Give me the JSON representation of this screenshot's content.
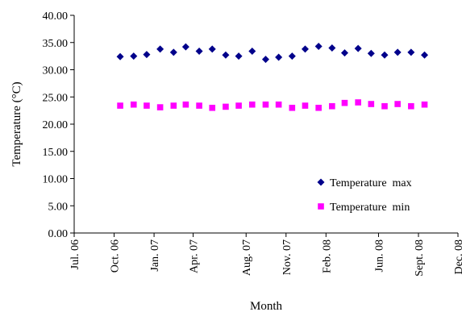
{
  "chart_data": {
    "type": "scatter",
    "xlabel": "Month",
    "ylabel": "Temperature (°C)",
    "ylim": [
      0,
      40
    ],
    "yticks": [
      "0.00",
      "5.00",
      "10.00",
      "15.00",
      "20.00",
      "25.00",
      "30.00",
      "35.00",
      "40.00"
    ],
    "xlim": [
      "2006-07-01",
      "2008-12-01"
    ],
    "xticks": [
      {
        "date": "2006-07-01",
        "label": "Jul. 06"
      },
      {
        "date": "2006-10-01",
        "label": "Oct. 06"
      },
      {
        "date": "2007-01-01",
        "label": "Jan. 07"
      },
      {
        "date": "2007-04-01",
        "label": "Apr. 07"
      },
      {
        "date": "2007-08-01",
        "label": "Aug. 07"
      },
      {
        "date": "2007-11-01",
        "label": "Nov. 07"
      },
      {
        "date": "2008-02-01",
        "label": "Feb. 08"
      },
      {
        "date": "2008-06-01",
        "label": "Jun. 08"
      },
      {
        "date": "2008-09-01",
        "label": "Sept. 08"
      },
      {
        "date": "2008-12-01",
        "label": "Dec. 08"
      }
    ],
    "legend_position": "right",
    "grid": false,
    "series": [
      {
        "name": "Temperature  max",
        "marker": "diamond",
        "color": "#00008B",
        "points": [
          {
            "x": "2006-10-15",
            "y": 32.4
          },
          {
            "x": "2006-11-15",
            "y": 32.5
          },
          {
            "x": "2006-12-15",
            "y": 32.8
          },
          {
            "x": "2007-01-15",
            "y": 33.8
          },
          {
            "x": "2007-02-15",
            "y": 33.2
          },
          {
            "x": "2007-03-15",
            "y": 34.2
          },
          {
            "x": "2007-04-15",
            "y": 33.4
          },
          {
            "x": "2007-05-15",
            "y": 33.8
          },
          {
            "x": "2007-06-15",
            "y": 32.7
          },
          {
            "x": "2007-07-15",
            "y": 32.5
          },
          {
            "x": "2007-08-15",
            "y": 33.4
          },
          {
            "x": "2007-09-15",
            "y": 31.9
          },
          {
            "x": "2007-10-15",
            "y": 32.3
          },
          {
            "x": "2007-11-15",
            "y": 32.5
          },
          {
            "x": "2007-12-15",
            "y": 33.8
          },
          {
            "x": "2008-01-15",
            "y": 34.3
          },
          {
            "x": "2008-02-15",
            "y": 34.0
          },
          {
            "x": "2008-03-15",
            "y": 33.1
          },
          {
            "x": "2008-04-15",
            "y": 33.9
          },
          {
            "x": "2008-05-15",
            "y": 33.0
          },
          {
            "x": "2008-06-15",
            "y": 32.7
          },
          {
            "x": "2008-07-15",
            "y": 33.2
          },
          {
            "x": "2008-08-15",
            "y": 33.2
          },
          {
            "x": "2008-09-15",
            "y": 32.7
          }
        ]
      },
      {
        "name": "Temperature  min",
        "marker": "square",
        "color": "#FF00FF",
        "points": [
          {
            "x": "2006-10-15",
            "y": 23.4
          },
          {
            "x": "2006-11-15",
            "y": 23.6
          },
          {
            "x": "2006-12-15",
            "y": 23.4
          },
          {
            "x": "2007-01-15",
            "y": 23.1
          },
          {
            "x": "2007-02-15",
            "y": 23.4
          },
          {
            "x": "2007-03-15",
            "y": 23.6
          },
          {
            "x": "2007-04-15",
            "y": 23.4
          },
          {
            "x": "2007-05-15",
            "y": 23.0
          },
          {
            "x": "2007-06-15",
            "y": 23.2
          },
          {
            "x": "2007-07-15",
            "y": 23.4
          },
          {
            "x": "2007-08-15",
            "y": 23.6
          },
          {
            "x": "2007-09-15",
            "y": 23.6
          },
          {
            "x": "2007-10-15",
            "y": 23.6
          },
          {
            "x": "2007-11-15",
            "y": 23.0
          },
          {
            "x": "2007-12-15",
            "y": 23.4
          },
          {
            "x": "2008-01-15",
            "y": 23.0
          },
          {
            "x": "2008-02-15",
            "y": 23.3
          },
          {
            "x": "2008-03-15",
            "y": 23.9
          },
          {
            "x": "2008-04-15",
            "y": 24.0
          },
          {
            "x": "2008-05-15",
            "y": 23.7
          },
          {
            "x": "2008-06-15",
            "y": 23.3
          },
          {
            "x": "2008-07-15",
            "y": 23.7
          },
          {
            "x": "2008-08-15",
            "y": 23.3
          },
          {
            "x": "2008-09-15",
            "y": 23.6
          }
        ]
      }
    ]
  }
}
